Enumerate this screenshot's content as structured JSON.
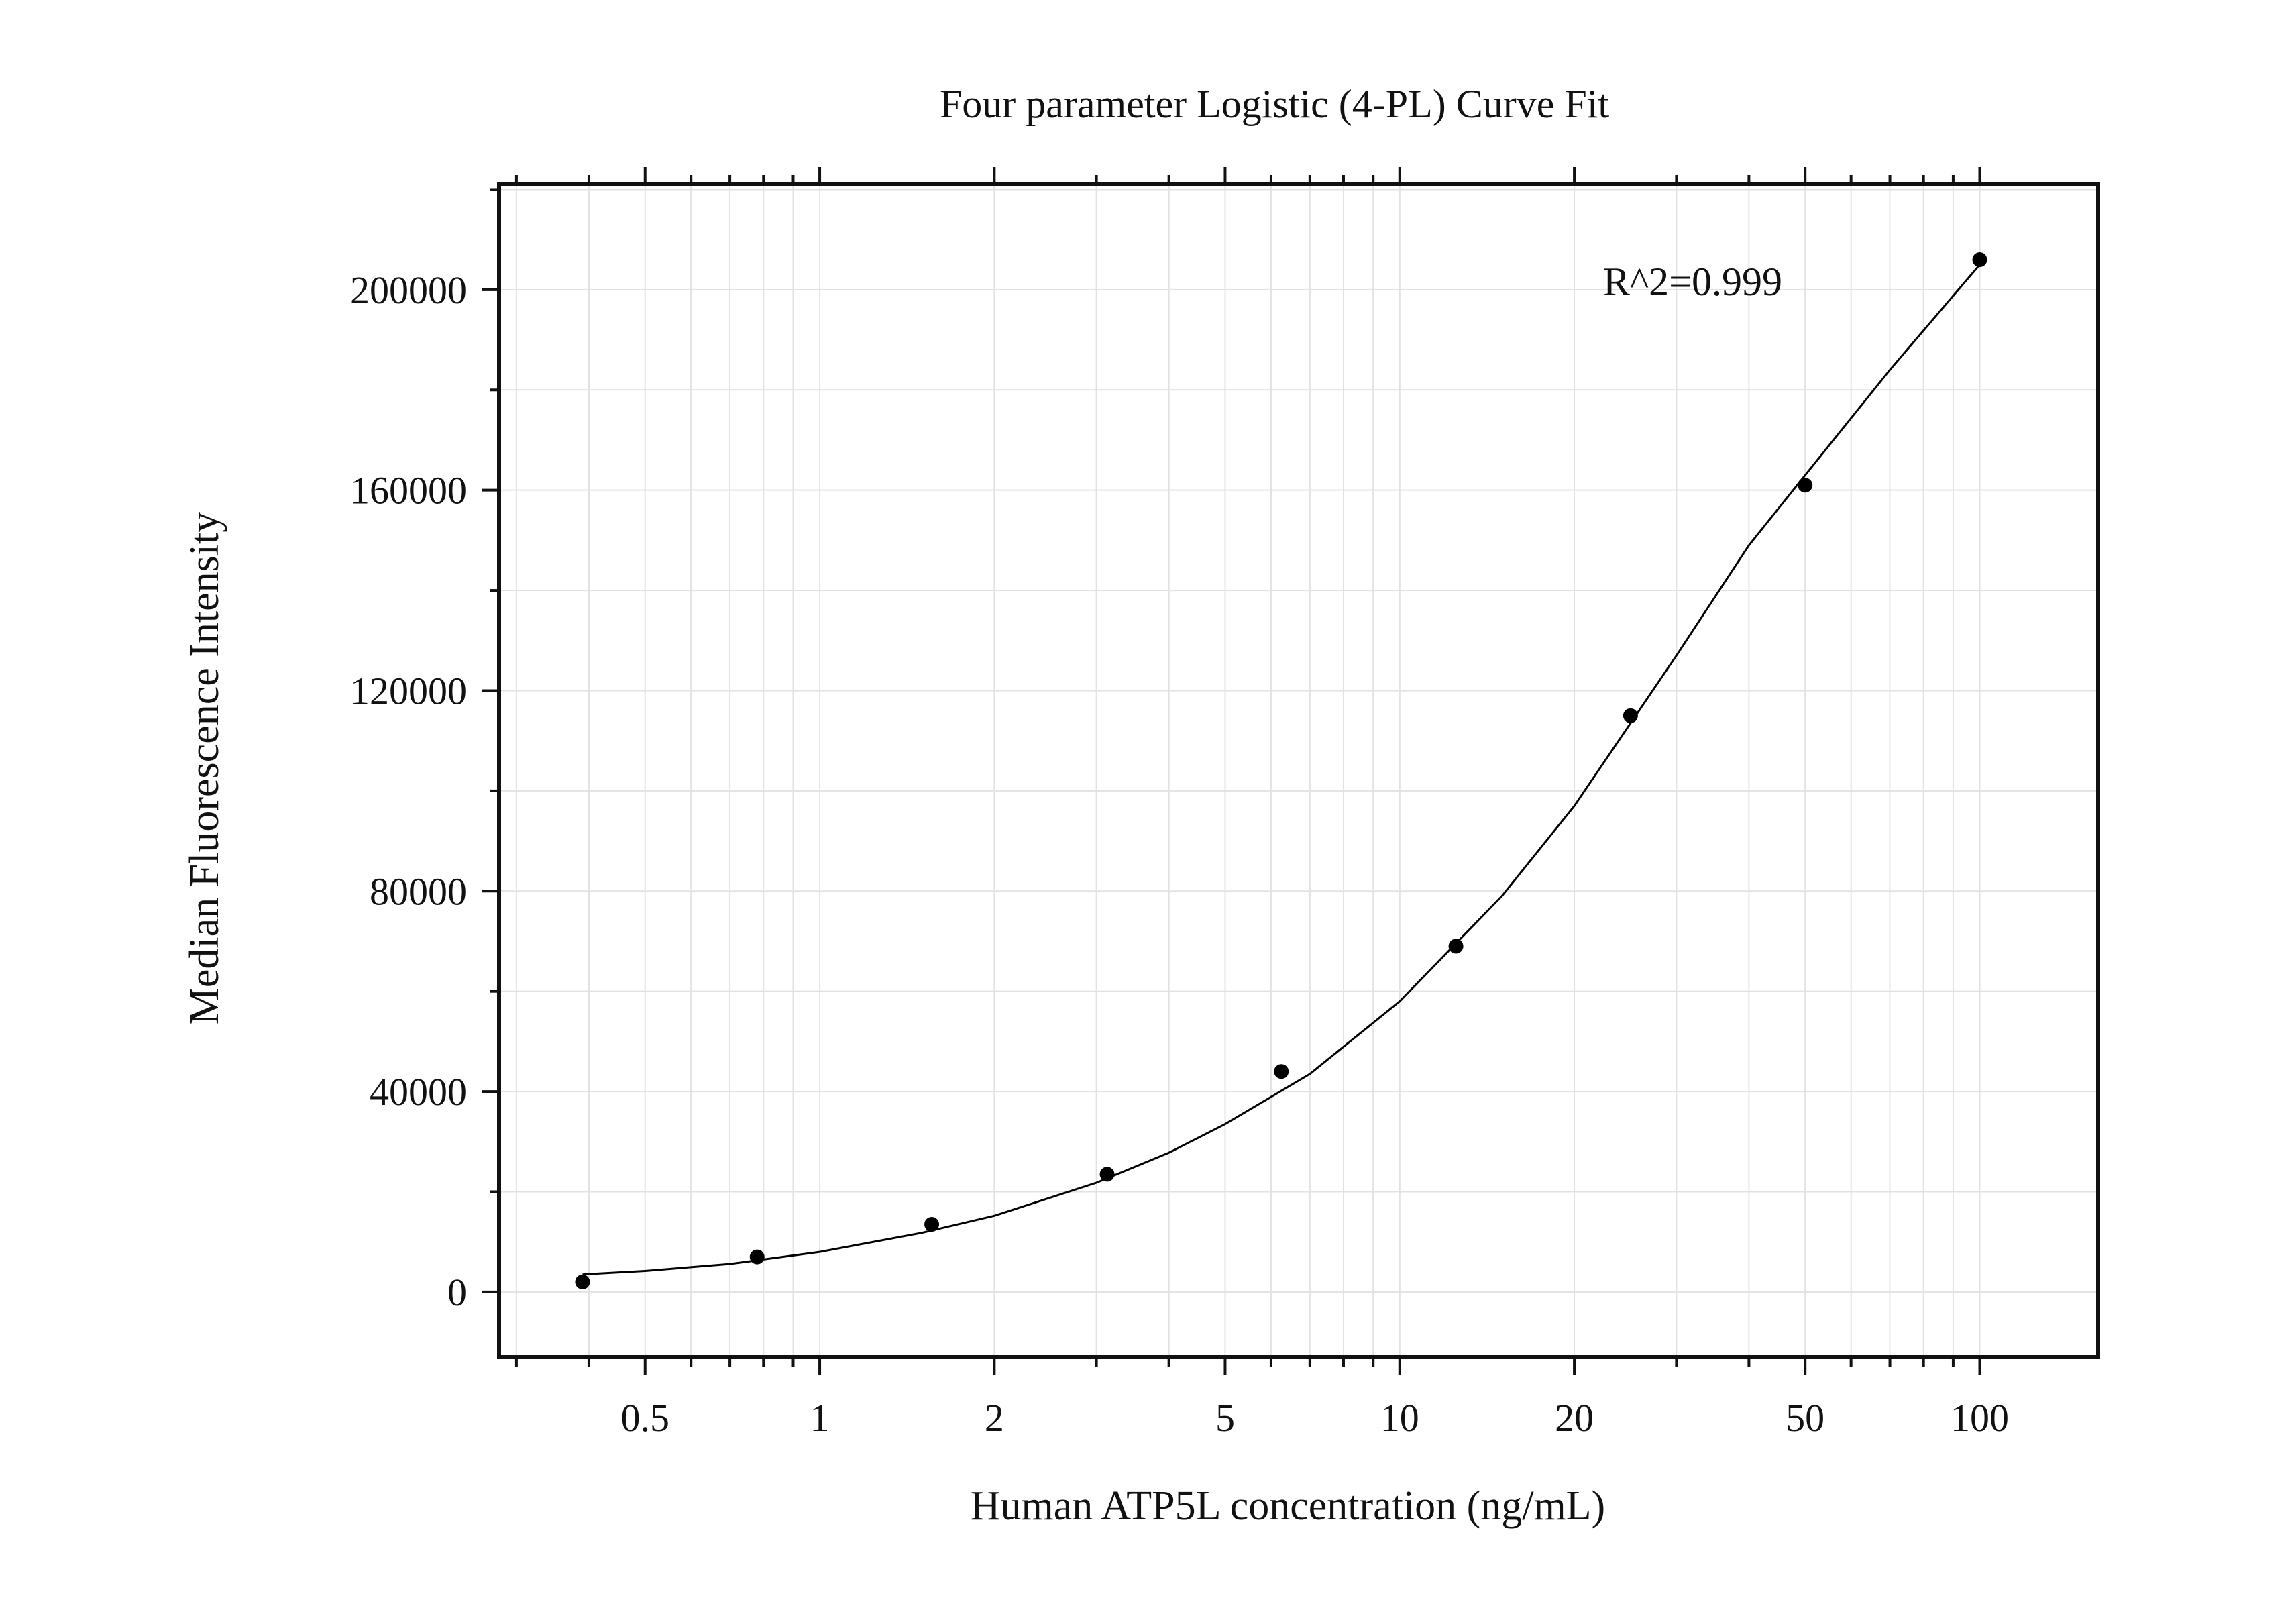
{
  "chart_data": {
    "type": "scatter",
    "title": "Four parameter Logistic (4-PL) Curve Fit",
    "xlabel": "Human ATP5L concentration (ng/mL)",
    "ylabel": "Median Fluorescence Intensity",
    "x_scale": "log",
    "xlim": [
      0.28,
      160
    ],
    "ylim": [
      -13000,
      221000
    ],
    "x_ticks": [
      {
        "value": 0.5,
        "label": "0.5"
      },
      {
        "value": 1,
        "label": "1"
      },
      {
        "value": 2,
        "label": "2"
      },
      {
        "value": 5,
        "label": "5"
      },
      {
        "value": 10,
        "label": "10"
      },
      {
        "value": 20,
        "label": "20"
      },
      {
        "value": 50,
        "label": "50"
      },
      {
        "value": 100,
        "label": "100"
      }
    ],
    "y_ticks": [
      {
        "value": 0,
        "label": "0"
      },
      {
        "value": 40000,
        "label": "40000"
      },
      {
        "value": 80000,
        "label": "80000"
      },
      {
        "value": 120000,
        "label": "120000"
      },
      {
        "value": 160000,
        "label": "160000"
      },
      {
        "value": 200000,
        "label": "200000"
      }
    ],
    "grid": true,
    "series": [
      {
        "x": [
          0.39,
          0.78,
          1.56,
          3.13,
          6.25,
          12.5,
          25,
          50,
          100
        ],
        "y": [
          2000,
          7000,
          13500,
          23500,
          44000,
          69000,
          115000,
          161000,
          206000
        ],
        "marker_color": "#000000"
      }
    ],
    "fit_curve": {
      "x": [
        0.39,
        0.5,
        0.7,
        1,
        1.5,
        2,
        3,
        4,
        5,
        7,
        10,
        15,
        20,
        30,
        40,
        50,
        70,
        100
      ],
      "y": [
        3500,
        4200,
        5600,
        8000,
        11800,
        15200,
        21800,
        27800,
        33500,
        43500,
        58000,
        79000,
        97000,
        127000,
        149000,
        163000,
        184000,
        205000
      ],
      "color": "#000000"
    },
    "annotation": {
      "text": "R^2=0.999"
    }
  }
}
